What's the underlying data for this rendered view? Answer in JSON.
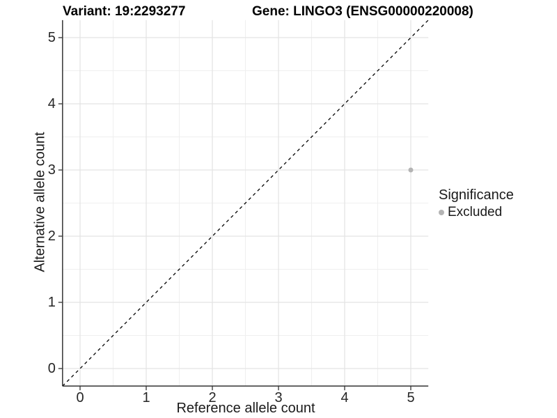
{
  "titles": {
    "variant": "Variant: 19:2293277",
    "gene": "Gene: LINGO3 (ENSG00000220008)"
  },
  "chart_data": {
    "type": "scatter",
    "title": "Variant: 19:2293277    Gene: LINGO3 (ENSG00000220008)",
    "xlabel": "Reference allele count",
    "ylabel": "Alternative allele count",
    "xlim": [
      -0.265,
      5.265
    ],
    "ylim": [
      -0.265,
      5.265
    ],
    "x_ticks": [
      0,
      1,
      2,
      3,
      4,
      5
    ],
    "y_ticks": [
      0,
      1,
      2,
      3,
      4,
      5
    ],
    "minor_gridlines": [
      0.5,
      1.5,
      2.5,
      3.5,
      4.5
    ],
    "grid": "major-and-minor",
    "points": [
      {
        "x": 5,
        "y": 3,
        "series": "Excluded"
      }
    ],
    "reference_line": {
      "type": "identity",
      "slope": 1,
      "intercept": 0,
      "style": "dashed"
    },
    "legend": {
      "title": "Significance",
      "position": "right",
      "items": [
        {
          "label": "Excluded",
          "color": "#b4b4b4"
        }
      ]
    },
    "colors": {
      "point": "#b4b4b4",
      "grid_major": "#e3e3e3",
      "grid_minor": "#efefef",
      "axis_line": "#333333",
      "reference_line": "#000000",
      "text": "#1a1a1a"
    }
  }
}
